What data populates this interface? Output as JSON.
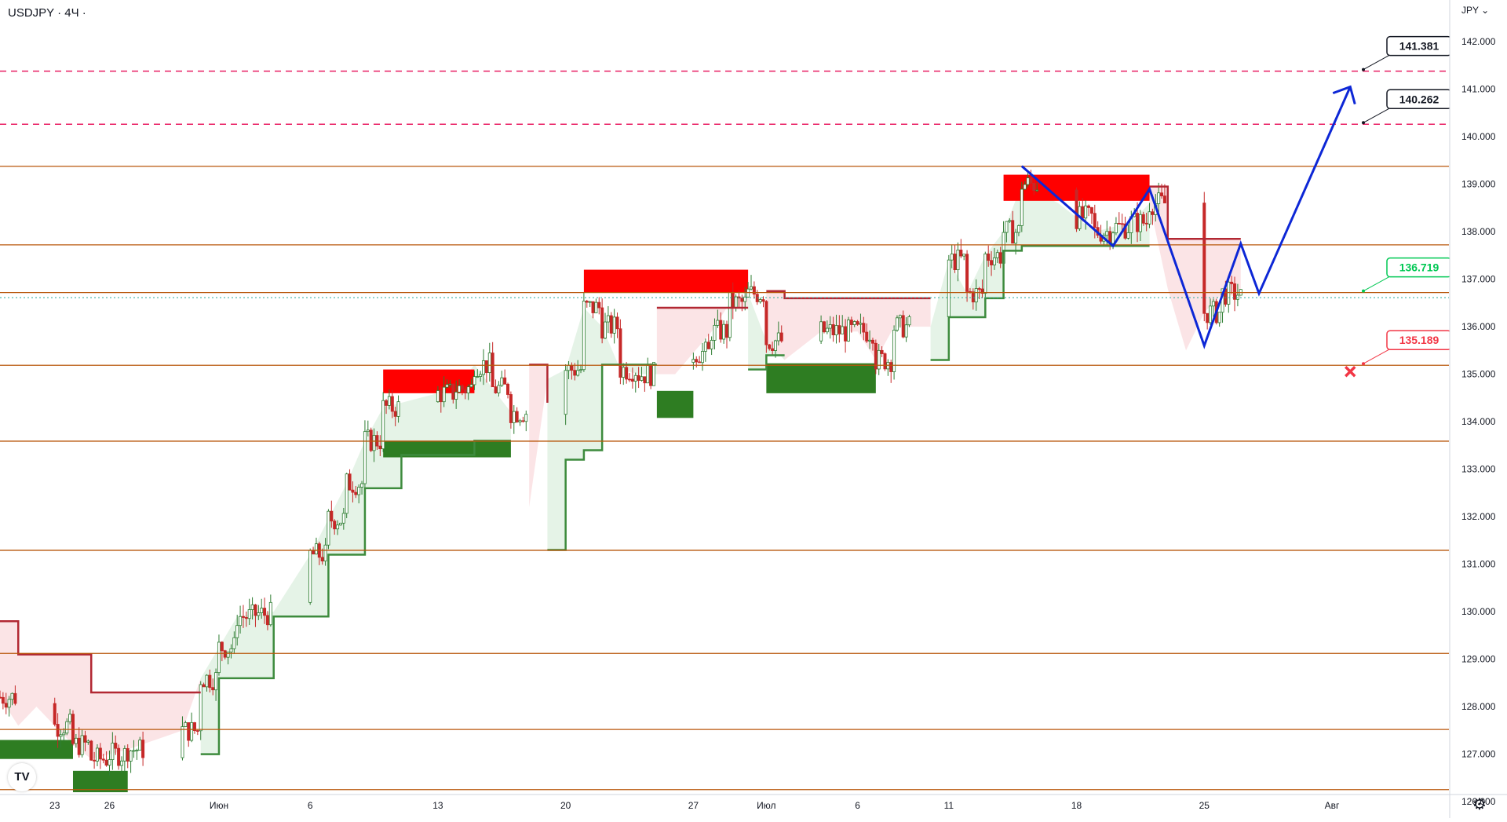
{
  "header": {
    "symbol": "USDJPY",
    "interval": "4Ч",
    "separator": "·",
    "currency": "JPY"
  },
  "tradingview_logo": "TV",
  "chart_data": {
    "type": "candlestick",
    "ylim": [
      125.9,
      142.3
    ],
    "y_ticks": [
      "126.000",
      "127.000",
      "128.000",
      "129.000",
      "130.000",
      "131.000",
      "132.000",
      "133.000",
      "134.000",
      "135.000",
      "136.000",
      "137.000",
      "138.000",
      "139.000",
      "140.000",
      "141.000",
      "142.000"
    ],
    "x_ticks": [
      "23",
      "26",
      "Июн",
      "6",
      "13",
      "20",
      "27",
      "Июл",
      "6",
      "11",
      "18",
      "25",
      "Авг"
    ],
    "x_date_range": [
      "2022-05-20",
      "2022-08-05"
    ],
    "horizontal_levels": [
      {
        "value": 141.381,
        "label": "141.381",
        "color": "#e91e63",
        "style": "dashed"
      },
      {
        "value": 140.262,
        "label": "140.262",
        "color": "#e91e63",
        "style": "dashed"
      },
      {
        "value": 139.377,
        "label": "139.377",
        "color": "#b8560a",
        "style": "solid"
      },
      {
        "value": 137.724,
        "label": "137.724",
        "color": "#b8560a",
        "style": "solid"
      },
      {
        "value": 136.719,
        "label": "136.719",
        "color": "#b8560a",
        "style": "solid"
      },
      {
        "value": 135.189,
        "label": "135.189",
        "color": "#b8560a",
        "style": "solid"
      },
      {
        "value": 133.59,
        "label": "133.590",
        "color": "#b8560a",
        "style": "solid"
      },
      {
        "value": 131.293,
        "label": "131.293",
        "color": "#b8560a",
        "style": "solid"
      },
      {
        "value": 129.122,
        "label": "129.122",
        "color": "#b8560a",
        "style": "solid"
      },
      {
        "value": 127.521,
        "label": "127.521",
        "color": "#b8560a",
        "style": "solid"
      },
      {
        "value": 126.255,
        "label": "126.255",
        "color": "#b8560a",
        "style": "solid"
      }
    ],
    "last_price": {
      "value": 136.612,
      "label": "136.612",
      "color": "#26a69a"
    },
    "target_callouts": [
      {
        "value": 141.381,
        "label": "141.381",
        "color": "#131722"
      },
      {
        "value": 140.262,
        "label": "140.262",
        "color": "#131722"
      },
      {
        "value": 136.719,
        "label": "136.719",
        "color": "#00c853"
      },
      {
        "value": 135.189,
        "label": "135.189",
        "color": "#f23645"
      }
    ],
    "stop_marker": {
      "value": 135.189,
      "date": "2022-08-02",
      "color": "#f23645"
    },
    "projection_path": [
      {
        "date": "2022-07-15",
        "y": 139.38
      },
      {
        "date": "2022-07-20",
        "y": 137.7
      },
      {
        "date": "2022-07-22",
        "y": 138.9
      },
      {
        "date": "2022-07-25",
        "y": 135.6
      },
      {
        "date": "2022-07-27",
        "y": 137.75
      },
      {
        "date": "2022-07-28",
        "y": 136.7
      },
      {
        "date": "2022-08-02",
        "y": 141.05
      }
    ],
    "supply_zones": [
      {
        "from": "2022-06-10",
        "to": "2022-06-15",
        "top": 135.1,
        "bottom": 134.6
      },
      {
        "from": "2022-06-21",
        "to": "2022-06-30",
        "top": 137.2,
        "bottom": 136.72
      },
      {
        "from": "2022-07-14",
        "to": "2022-07-22",
        "top": 139.2,
        "bottom": 138.65
      }
    ],
    "demand_zones": [
      {
        "from": "2022-05-20",
        "to": "2022-05-24",
        "top": 127.3,
        "bottom": 126.9
      },
      {
        "from": "2022-05-24",
        "to": "2022-05-27",
        "top": 126.65,
        "bottom": 126.2
      },
      {
        "from": "2022-06-10",
        "to": "2022-06-17",
        "top": 133.6,
        "bottom": 133.25
      },
      {
        "from": "2022-06-25",
        "to": "2022-06-27",
        "top": 134.65,
        "bottom": 134.08
      },
      {
        "from": "2022-07-01",
        "to": "2022-07-07",
        "top": 135.23,
        "bottom": 134.6
      }
    ],
    "supertrend_down": [
      {
        "points": [
          [
            "2022-05-20",
            129.8
          ],
          [
            "2022-05-21",
            129.1
          ],
          [
            "2022-05-23",
            129.1
          ],
          [
            "2022-05-25",
            128.3
          ],
          [
            "2022-05-31",
            128.3
          ]
        ],
        "fill_to": "close"
      },
      {
        "points": [
          [
            "2022-06-18",
            135.2
          ],
          [
            "2022-06-19",
            134.4
          ],
          [
            "2022-06-19",
            134.4
          ]
        ],
        "fill_to": "close"
      },
      {
        "points": [
          [
            "2022-06-25",
            136.4
          ],
          [
            "2022-06-30",
            136.4
          ]
        ],
        "fill_to": "close"
      },
      {
        "points": [
          [
            "2022-07-01",
            136.75
          ],
          [
            "2022-07-02",
            136.6
          ],
          [
            "2022-07-10",
            136.6
          ]
        ],
        "fill_to": "close"
      },
      {
        "points": [
          [
            "2022-07-22",
            138.95
          ],
          [
            "2022-07-23",
            137.85
          ],
          [
            "2022-07-27",
            137.85
          ]
        ],
        "fill_to": "close"
      }
    ],
    "supertrend_up": [
      {
        "points": [
          [
            "2022-05-31",
            127
          ],
          [
            "2022-06-01",
            128.6
          ],
          [
            "2022-06-04",
            129.9
          ],
          [
            "2022-06-07",
            131.2
          ],
          [
            "2022-06-09",
            132.6
          ],
          [
            "2022-06-11",
            133.3
          ],
          [
            "2022-06-13",
            133.3
          ],
          [
            "2022-06-15",
            133.6
          ],
          [
            "2022-06-17",
            133.6
          ]
        ]
      },
      {
        "points": [
          [
            "2022-06-19",
            131.3
          ],
          [
            "2022-06-20",
            133.2
          ],
          [
            "2022-06-21",
            133.4
          ],
          [
            "2022-06-22",
            135.2
          ],
          [
            "2022-06-25",
            135.2
          ]
        ]
      },
      {
        "points": [
          [
            "2022-06-30",
            135.1
          ],
          [
            "2022-07-01",
            135.4
          ],
          [
            "2022-07-02",
            135.4
          ]
        ]
      },
      {
        "points": [
          [
            "2022-07-10",
            135.3
          ],
          [
            "2022-07-11",
            136.2
          ],
          [
            "2022-07-13",
            136.6
          ],
          [
            "2022-07-14",
            137.6
          ],
          [
            "2022-07-15",
            137.7
          ],
          [
            "2022-07-22",
            137.7
          ]
        ]
      }
    ],
    "ohlc_anchors": [
      [
        "2022-05-20",
        128.2
      ],
      [
        "2022-05-21",
        127.6
      ],
      [
        "2022-05-22",
        128.0
      ],
      [
        "2022-05-24",
        127.2
      ],
      [
        "2022-05-25",
        126.9
      ],
      [
        "2022-05-27",
        127.1
      ],
      [
        "2022-05-30",
        127.5
      ],
      [
        "2022-05-31",
        128.6
      ],
      [
        "2022-06-02",
        129.9
      ],
      [
        "2022-06-04",
        130.0
      ],
      [
        "2022-06-06",
        131.2
      ],
      [
        "2022-06-08",
        132.7
      ],
      [
        "2022-06-09",
        133.6
      ],
      [
        "2022-06-10",
        134.3
      ],
      [
        "2022-06-12",
        134.5
      ],
      [
        "2022-06-14",
        134.7
      ],
      [
        "2022-06-15",
        135.2
      ],
      [
        "2022-06-17",
        134.2
      ],
      [
        "2022-06-18",
        132.2
      ],
      [
        "2022-06-19",
        134.9
      ],
      [
        "2022-06-20",
        135.1
      ],
      [
        "2022-06-21",
        136.4
      ],
      [
        "2022-06-22",
        136.0
      ],
      [
        "2022-06-23",
        135.1
      ],
      [
        "2022-06-24",
        135.0
      ],
      [
        "2022-06-26",
        135.0
      ],
      [
        "2022-06-28",
        135.9
      ],
      [
        "2022-06-29",
        136.5
      ],
      [
        "2022-06-30",
        136.7
      ],
      [
        "2022-07-01",
        135.7
      ],
      [
        "2022-07-02",
        135.3
      ],
      [
        "2022-07-04",
        135.9
      ],
      [
        "2022-07-06",
        135.9
      ],
      [
        "2022-07-07",
        135.3
      ],
      [
        "2022-07-08",
        136.0
      ],
      [
        "2022-07-10",
        136.0
      ],
      [
        "2022-07-11",
        137.4
      ],
      [
        "2022-07-12",
        136.7
      ],
      [
        "2022-07-13",
        137.5
      ],
      [
        "2022-07-14",
        138.0
      ],
      [
        "2022-07-15",
        139.0
      ],
      [
        "2022-07-17",
        138.6
      ],
      [
        "2022-07-19",
        138.0
      ],
      [
        "2022-07-20",
        138.1
      ],
      [
        "2022-07-21",
        138.2
      ],
      [
        "2022-07-22",
        138.6
      ],
      [
        "2022-07-23",
        136.8
      ],
      [
        "2022-07-24",
        135.5
      ],
      [
        "2022-07-25",
        136.3
      ],
      [
        "2022-07-26",
        136.7
      ],
      [
        "2022-07-27",
        136.61
      ]
    ]
  }
}
